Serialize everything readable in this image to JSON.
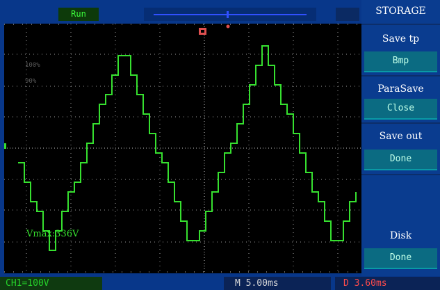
{
  "status": {
    "run_label": "Run"
  },
  "menu": {
    "title": "STORAGE",
    "items": [
      {
        "label": "Save tp",
        "value": "Bmp"
      },
      {
        "label": "ParaSave",
        "value": "Close"
      },
      {
        "label": "Save out",
        "value": "Done"
      },
      {
        "label": "Disk",
        "value": "Done"
      }
    ]
  },
  "readouts": {
    "vmax": "Vmax:336V",
    "ch1": "CH1=100V",
    "timebase": "M 5.00ms",
    "delay": "D 3.60ms"
  },
  "grid_labels": {
    "pct100": "100%",
    "pct90": "90%"
  },
  "colors": {
    "trace": "#36e02f",
    "ch1_text": "#25d12a",
    "delay_text": "#ff4b4b",
    "background": "#08378a",
    "menu_value_box": "#0b6b82"
  }
}
